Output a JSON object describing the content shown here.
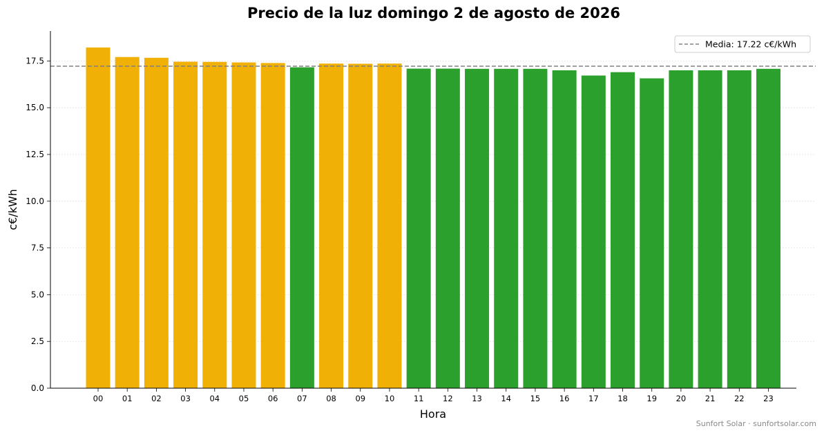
{
  "chart_data": {
    "type": "bar",
    "title": "Precio de la luz domingo 2 de agosto de 2026",
    "xlabel": "Hora",
    "ylabel": "c€/kWh",
    "categories": [
      "00",
      "01",
      "02",
      "03",
      "04",
      "05",
      "06",
      "07",
      "08",
      "09",
      "10",
      "11",
      "12",
      "13",
      "14",
      "15",
      "16",
      "17",
      "18",
      "19",
      "20",
      "21",
      "22",
      "23"
    ],
    "values": [
      18.22,
      17.71,
      17.67,
      17.46,
      17.45,
      17.42,
      17.39,
      17.16,
      17.36,
      17.35,
      17.36,
      17.09,
      17.09,
      17.08,
      17.08,
      17.08,
      17.0,
      16.72,
      16.9,
      16.57,
      17.0,
      17.0,
      17.0,
      17.08
    ],
    "bar_colors": [
      "#f0b005",
      "#f0b005",
      "#f0b005",
      "#f0b005",
      "#f0b005",
      "#f0b005",
      "#f0b005",
      "#2ca02c",
      "#f0b005",
      "#f0b005",
      "#f0b005",
      "#2ca02c",
      "#2ca02c",
      "#2ca02c",
      "#2ca02c",
      "#2ca02c",
      "#2ca02c",
      "#2ca02c",
      "#2ca02c",
      "#2ca02c",
      "#2ca02c",
      "#2ca02c",
      "#2ca02c",
      "#2ca02c"
    ],
    "ylim": [
      0,
      19.1
    ],
    "yticks": [
      "0.0",
      "2.5",
      "5.0",
      "7.5",
      "10.0",
      "12.5",
      "15.0",
      "17.5"
    ],
    "mean": 17.22,
    "legend": {
      "label": "Media: 17.22 c€/kWh",
      "placement": "top-right"
    },
    "grid": "horizontal dotted",
    "colors": {
      "expensive": "#f0b005",
      "cheap": "#2ca02c",
      "mean_line": "#808080"
    }
  },
  "footer": {
    "credit": "Sunfort Solar · sunfortsolar.com"
  }
}
